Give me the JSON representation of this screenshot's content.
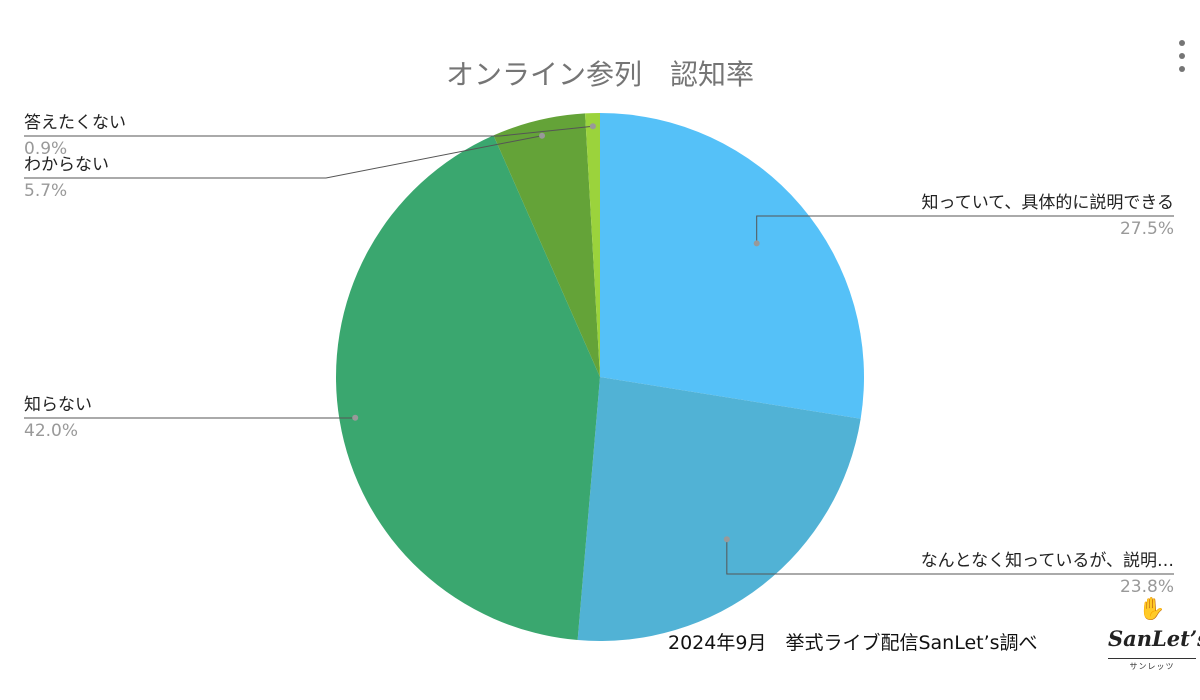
{
  "chart_data": {
    "type": "pie",
    "title": "オンライン参列　認知率",
    "start_angle_deg": 0,
    "direction": "clockwise",
    "slices": [
      {
        "label": "知っていて、具体的に説明できる",
        "display_label": "知っていて、具体的に説明できる",
        "value": 27.5,
        "pct_label": "27.5%",
        "color": "#55c1f8"
      },
      {
        "label": "なんとなく知っているが、説明…",
        "display_label": "なんとなく知っているが、説明…",
        "value": 23.8,
        "pct_label": "23.8%",
        "color": "#51b2d5"
      },
      {
        "label": "知らない",
        "display_label": "知らない",
        "value": 42.0,
        "pct_label": "42.0%",
        "color": "#3aa76f"
      },
      {
        "label": "わからない",
        "display_label": "わからない",
        "value": 5.7,
        "pct_label": "5.7%",
        "color": "#64a338"
      },
      {
        "label": "答えたくない",
        "display_label": "答えたくない",
        "value": 0.9,
        "pct_label": "0.9%",
        "color": "#9bd33c"
      }
    ],
    "legend": "none"
  },
  "footer": {
    "caption": "2024年9月　挙式ライブ配信SanLet’s調べ"
  },
  "logo": {
    "name": "SanLet’s",
    "sub": "サンレッツ",
    "hands_icon": "✋"
  }
}
